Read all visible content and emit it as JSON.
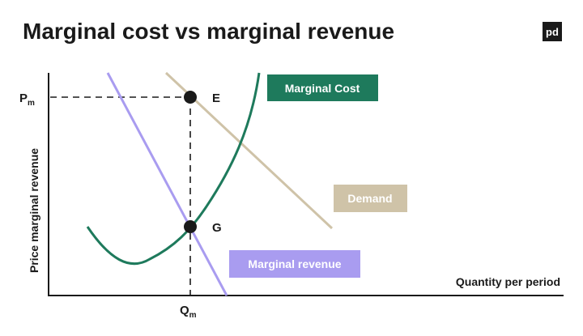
{
  "title": "Marginal cost vs marginal revenue",
  "logo": "pd",
  "axes": {
    "y_label": "Price marginal revenue",
    "x_label": "Quantity per period",
    "y_point": {
      "main": "P",
      "sub": "m"
    },
    "x_point": {
      "main": "Q",
      "sub": "m"
    }
  },
  "points": [
    {
      "label": "E"
    },
    {
      "label": "G"
    }
  ],
  "curves": [
    {
      "label": "Marginal Cost"
    },
    {
      "label": "Demand"
    },
    {
      "label": "Marginal revenue"
    }
  ]
}
